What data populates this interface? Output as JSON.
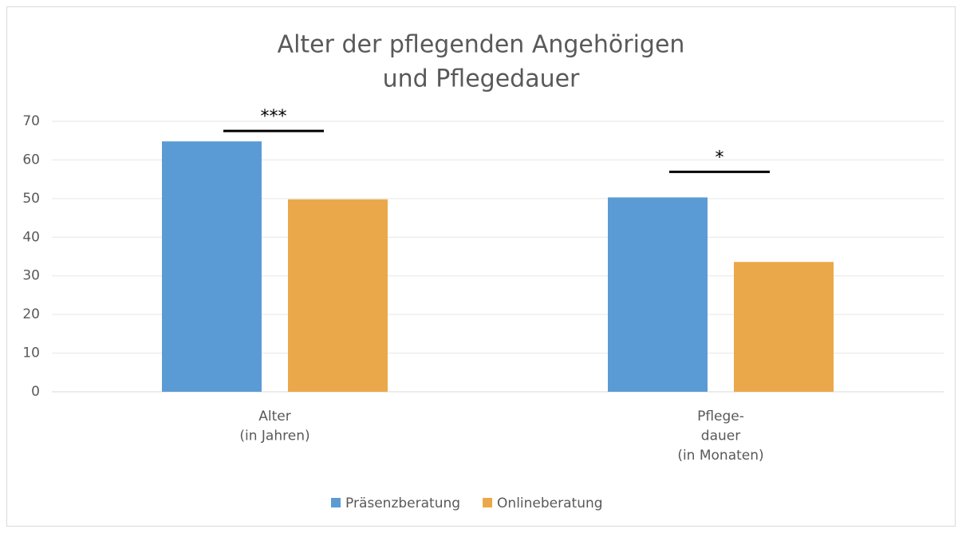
{
  "chart_data": {
    "type": "bar",
    "title": [
      "Alter der pflegenden Angehörigen",
      "und Pflegedauer"
    ],
    "categories": [
      [
        "Alter",
        "(in Jahren)"
      ],
      [
        "Pflege-",
        "dauer",
        "(in Monaten)"
      ]
    ],
    "series": [
      {
        "name": "Präsenzberatung",
        "color": "#5b9bd5",
        "values": [
          64.8,
          50.3
        ]
      },
      {
        "name": "Onlineberatung",
        "color": "#eba84a",
        "values": [
          49.8,
          33.6
        ]
      }
    ],
    "annotations": [
      "***",
      "*"
    ],
    "ylim": [
      0,
      70
    ],
    "yticks": [
      0,
      10,
      20,
      30,
      40,
      50,
      60,
      70
    ],
    "grid": true,
    "legend": "bottom"
  }
}
